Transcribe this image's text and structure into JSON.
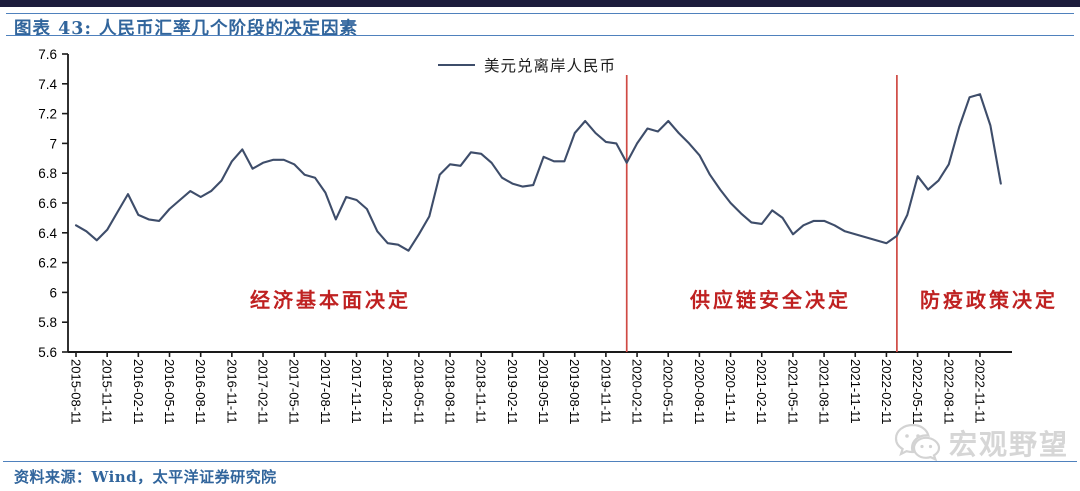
{
  "page": {
    "title": "图表 43: 人民币汇率几个阶段的决定因素",
    "source_note": "资料来源：Wind，太平洋证券研究院",
    "watermark": "宏观野望"
  },
  "colors": {
    "top_bar": "#1c1c3c",
    "rule_blue": "#4f81bd",
    "title_blue": "#31659c",
    "series_line": "#3e4d6a",
    "axis_black": "#1a1a1a",
    "highlight_red": "#cf4a44",
    "annotation_red": "#bf2121",
    "watermark_gray": "#d0d0d0"
  },
  "chart_data": {
    "type": "line",
    "title": "图表 43: 人民币汇率几个阶段的决定因素",
    "xlabel": "",
    "ylabel": "",
    "ylim": [
      5.6,
      7.6
    ],
    "grid": false,
    "legend_position": "top-center",
    "legend": [
      {
        "label": "美元兑离岸人民币",
        "color": "#3e4d6a"
      }
    ],
    "y_ticks": [
      5.6,
      5.8,
      6,
      6.2,
      6.4,
      6.6,
      6.8,
      7,
      7.2,
      7.4,
      7.6
    ],
    "x_tick_labels": [
      "2015-08-11",
      "2015-11-11",
      "2016-02-11",
      "2016-05-11",
      "2016-08-11",
      "2016-11-11",
      "2017-02-11",
      "2017-05-11",
      "2017-08-11",
      "2017-11-11",
      "2018-02-11",
      "2018-05-11",
      "2018-08-11",
      "2018-11-11",
      "2019-02-11",
      "2019-05-11",
      "2019-08-11",
      "2019-11-11",
      "2020-02-11",
      "2020-05-11",
      "2020-08-11",
      "2020-11-11",
      "2021-02-11",
      "2021-05-11",
      "2021-08-11",
      "2021-11-11",
      "2022-02-11",
      "2022-05-11",
      "2022-08-11",
      "2022-11-11"
    ],
    "x": [
      "2015-08",
      "2015-09",
      "2015-10",
      "2015-11",
      "2015-12",
      "2016-01",
      "2016-02",
      "2016-03",
      "2016-04",
      "2016-05",
      "2016-06",
      "2016-07",
      "2016-08",
      "2016-09",
      "2016-10",
      "2016-11",
      "2016-12",
      "2017-01",
      "2017-02",
      "2017-03",
      "2017-04",
      "2017-05",
      "2017-06",
      "2017-07",
      "2017-08",
      "2017-09",
      "2017-10",
      "2017-11",
      "2017-12",
      "2018-01",
      "2018-02",
      "2018-03",
      "2018-04",
      "2018-05",
      "2018-06",
      "2018-07",
      "2018-08",
      "2018-09",
      "2018-10",
      "2018-11",
      "2018-12",
      "2019-01",
      "2019-02",
      "2019-03",
      "2019-04",
      "2019-05",
      "2019-06",
      "2019-07",
      "2019-08",
      "2019-09",
      "2019-10",
      "2019-11",
      "2019-12",
      "2020-01",
      "2020-02",
      "2020-03",
      "2020-04",
      "2020-05",
      "2020-06",
      "2020-07",
      "2020-08",
      "2020-09",
      "2020-10",
      "2020-11",
      "2020-12",
      "2021-01",
      "2021-02",
      "2021-03",
      "2021-04",
      "2021-05",
      "2021-06",
      "2021-07",
      "2021-08",
      "2021-09",
      "2021-10",
      "2021-11",
      "2021-12",
      "2022-01",
      "2022-02",
      "2022-03",
      "2022-04",
      "2022-05",
      "2022-06",
      "2022-07",
      "2022-08",
      "2022-09",
      "2022-10",
      "2022-11",
      "2022-12",
      "2023-01"
    ],
    "series": [
      {
        "name": "美元兑离岸人民币",
        "values": [
          6.45,
          6.41,
          6.35,
          6.42,
          6.54,
          6.66,
          6.52,
          6.49,
          6.48,
          6.56,
          6.62,
          6.68,
          6.64,
          6.68,
          6.75,
          6.88,
          6.96,
          6.83,
          6.87,
          6.89,
          6.89,
          6.86,
          6.79,
          6.77,
          6.67,
          6.49,
          6.64,
          6.62,
          6.56,
          6.41,
          6.33,
          6.32,
          6.28,
          6.39,
          6.51,
          6.79,
          6.86,
          6.85,
          6.94,
          6.93,
          6.87,
          6.77,
          6.73,
          6.71,
          6.72,
          6.91,
          6.88,
          6.88,
          7.07,
          7.15,
          7.07,
          7.01,
          7.0,
          6.87,
          7.0,
          7.1,
          7.08,
          7.15,
          7.07,
          7.0,
          6.92,
          6.79,
          6.69,
          6.6,
          6.53,
          6.47,
          6.46,
          6.55,
          6.5,
          6.39,
          6.45,
          6.48,
          6.48,
          6.45,
          6.41,
          6.39,
          6.37,
          6.35,
          6.33,
          6.38,
          6.52,
          6.78,
          6.69,
          6.75,
          6.86,
          7.11,
          7.31,
          7.33,
          7.12,
          6.73
        ]
      }
    ],
    "vlines": [
      {
        "month": "2020-01"
      },
      {
        "month": "2022-03"
      }
    ],
    "annotations": [
      {
        "text": "经济基本面决定"
      },
      {
        "text": "供应链安全决定"
      },
      {
        "text": "防疫政策决定"
      }
    ]
  }
}
